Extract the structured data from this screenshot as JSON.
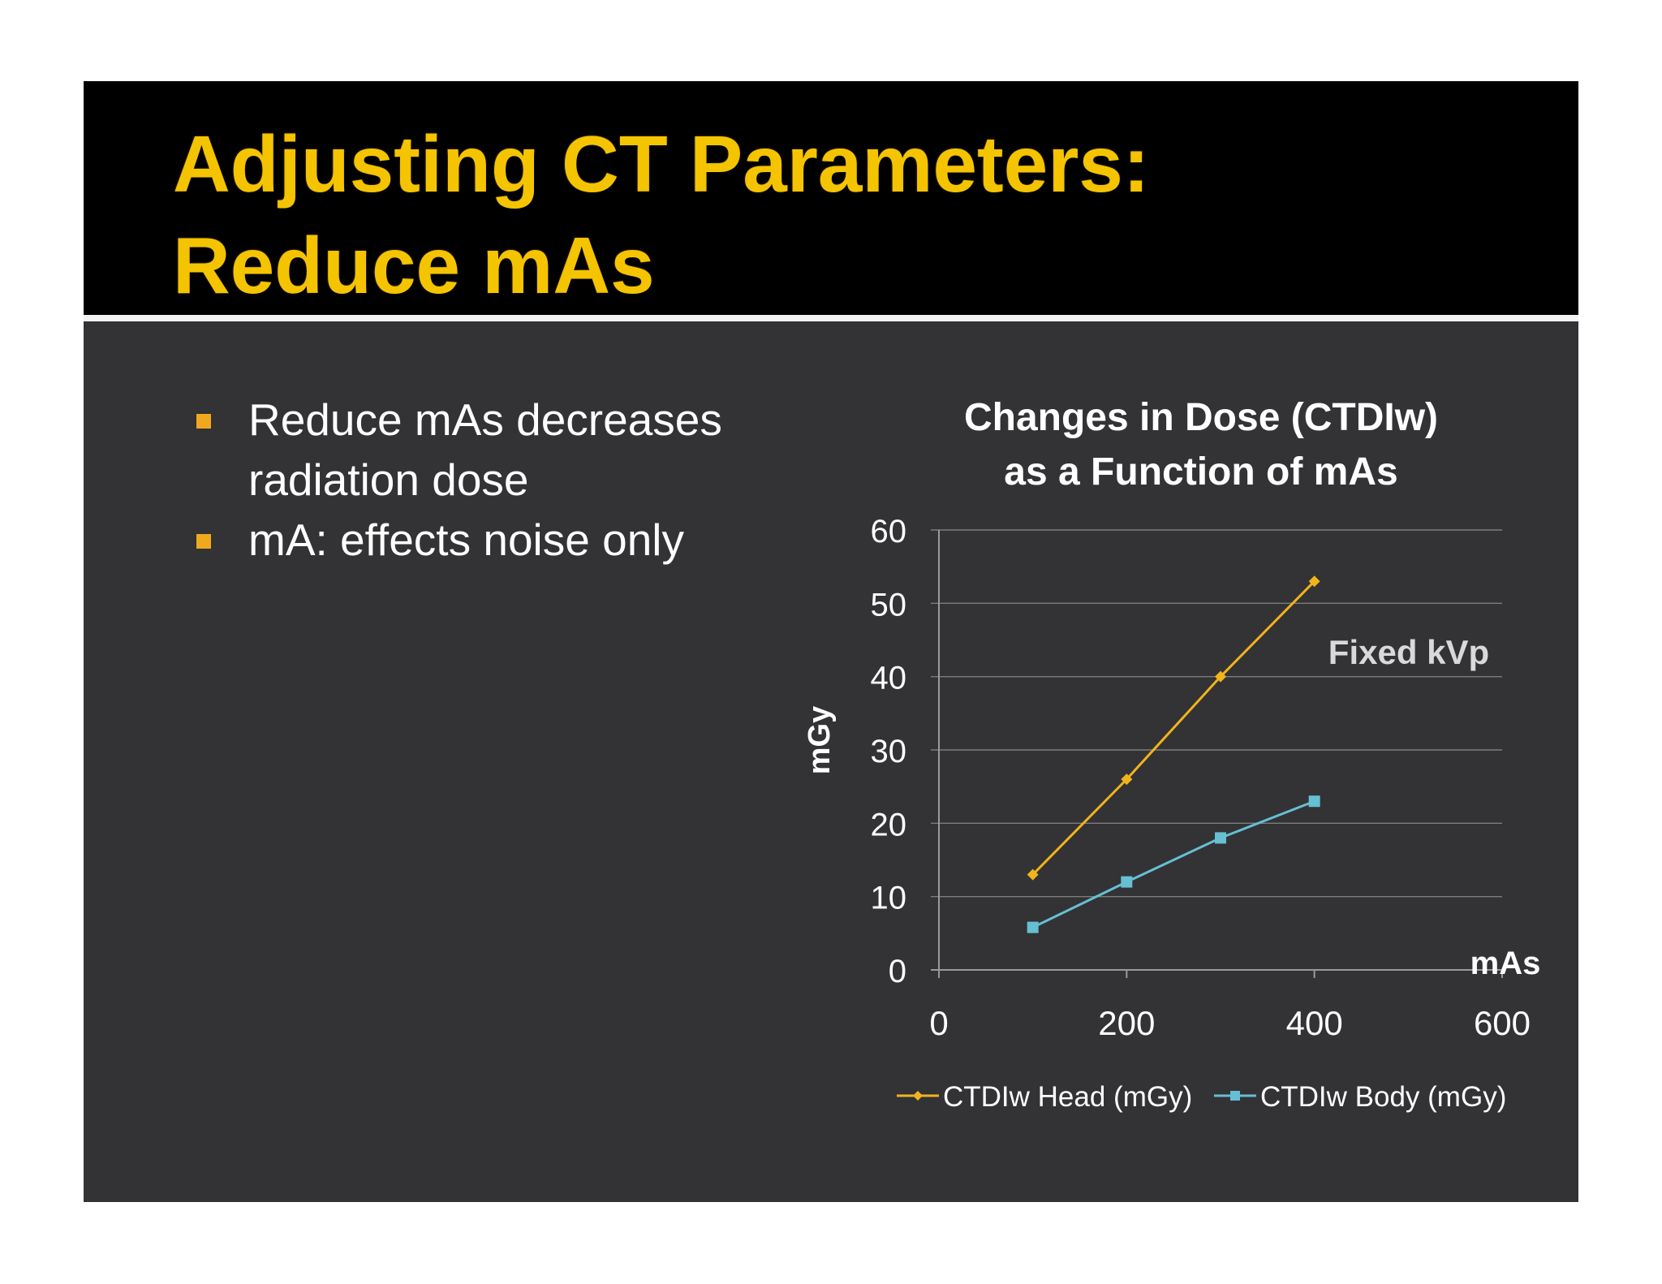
{
  "slide": {
    "title_lines": [
      "Adjusting CT Parameters:",
      "Reduce mAs"
    ],
    "bullets": [
      "Reduce mAs decreases radiation dose",
      "mA: effects noise only"
    ],
    "colors": {
      "title": "#f5c400",
      "title_bar": "#000000",
      "background": "#333235",
      "bullet_marker": "#f0a91e"
    }
  },
  "chart_data": {
    "type": "line",
    "title_lines": [
      "Changes in Dose (CTDIw)",
      "as a Function of mAs"
    ],
    "xlabel": "mAs",
    "ylabel": "mGy",
    "xlim": [
      0,
      600
    ],
    "ylim": [
      0,
      60
    ],
    "x_ticks": [
      "0",
      "200",
      "400",
      "600"
    ],
    "y_ticks": [
      "0",
      "10",
      "20",
      "30",
      "40",
      "50",
      "60"
    ],
    "grid": "horizontal",
    "legend_position": "bottom",
    "annotation": "Fixed kVp",
    "series": [
      {
        "name": "CTDIw Head (mGy)",
        "color": "#f0b41c",
        "marker": "diamond",
        "x": [
          100,
          200,
          300,
          400
        ],
        "y": [
          13,
          26,
          40,
          53
        ]
      },
      {
        "name": "CTDIw Body (mGy)",
        "color": "#66bfd3",
        "marker": "square",
        "x": [
          100,
          200,
          300,
          400
        ],
        "y": [
          5.8,
          12,
          18,
          23
        ]
      }
    ]
  }
}
